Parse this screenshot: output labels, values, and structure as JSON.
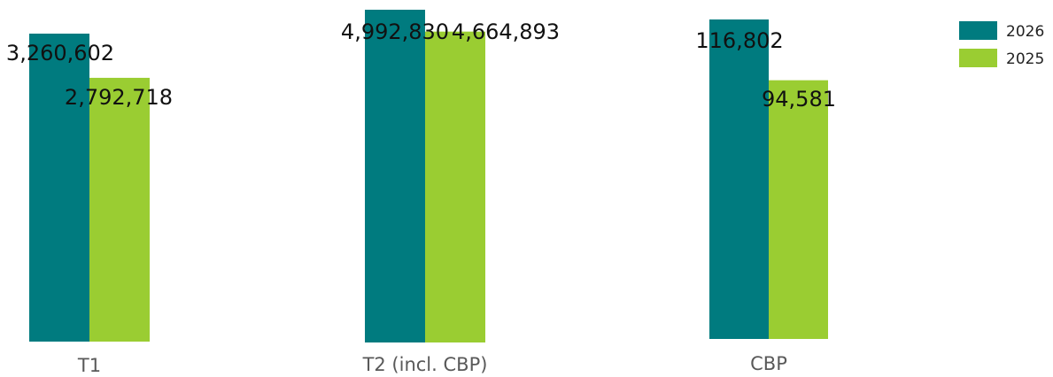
{
  "chart_data": {
    "type": "bar",
    "title": "",
    "xlabel": "",
    "ylabel": "",
    "legend_position": "top-right",
    "grid": false,
    "groups": [
      {
        "category": "T1",
        "series": [
          {
            "name": "2026",
            "value": 3260602,
            "label": "3,260,602"
          },
          {
            "name": "2025",
            "value": 2792718,
            "label": "2,792,718"
          }
        ]
      },
      {
        "category": "T2 (incl. CBP)",
        "series": [
          {
            "name": "2026",
            "value": 4992830,
            "label": "4,992,830"
          },
          {
            "name": "2025",
            "value": 4664893,
            "label": "4,664,893"
          }
        ]
      },
      {
        "category": "CBP",
        "series": [
          {
            "name": "2026",
            "value": 116802,
            "label": "116,802"
          },
          {
            "name": "2025",
            "value": 94581,
            "label": "94,581"
          }
        ]
      }
    ],
    "legend": [
      {
        "name": "2026",
        "color": "#007B7F"
      },
      {
        "name": "2025",
        "color": "#9ACD32"
      }
    ]
  }
}
